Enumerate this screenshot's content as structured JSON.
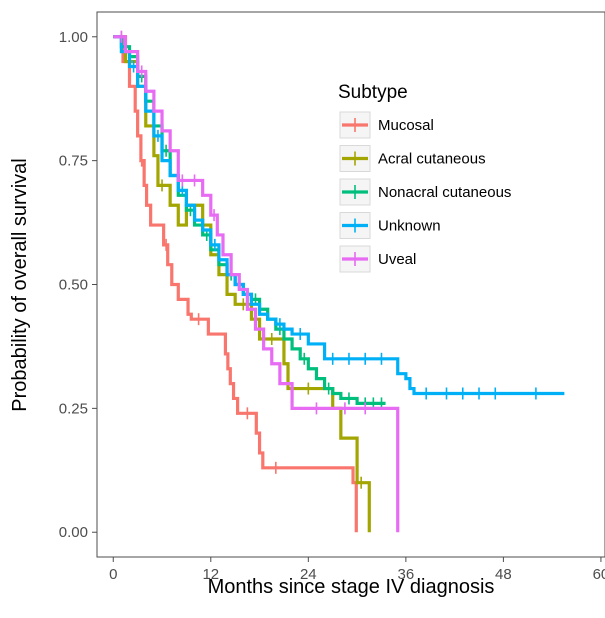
{
  "chart_data": {
    "type": "line",
    "xlabel": "Months since stage IV diagnosis",
    "ylabel": "Probability of overall survival",
    "xlim": [
      -2,
      60.5
    ],
    "ylim": [
      -0.05,
      1.05
    ],
    "xticks": [
      0,
      12,
      24,
      36,
      48,
      60
    ],
    "xtick_labels": [
      "0",
      "12",
      "24",
      "36",
      "48",
      "60"
    ],
    "yticks": [
      0,
      0.25,
      0.5,
      0.75,
      1.0
    ],
    "ytick_labels": [
      "0.00",
      "0.25",
      "0.50",
      "0.75",
      "1.00"
    ],
    "grid": false,
    "legend": {
      "title": "Subtype",
      "placement": "inside-top-right"
    },
    "series": [
      {
        "name": "Mucosal",
        "color": "#f8766d",
        "steps": [
          [
            0,
            1.0
          ],
          [
            1.2,
            0.95
          ],
          [
            2.0,
            0.9
          ],
          [
            2.7,
            0.85
          ],
          [
            3.0,
            0.8
          ],
          [
            3.4,
            0.75
          ],
          [
            3.8,
            0.7
          ],
          [
            4.1,
            0.66
          ],
          [
            4.6,
            0.62
          ],
          [
            6.2,
            0.58
          ],
          [
            6.7,
            0.54
          ],
          [
            7.2,
            0.5
          ],
          [
            8.0,
            0.47
          ],
          [
            9.2,
            0.44
          ],
          [
            9.6,
            0.43
          ],
          [
            11.7,
            0.4
          ],
          [
            13.8,
            0.36
          ],
          [
            14.1,
            0.33
          ],
          [
            14.4,
            0.3
          ],
          [
            14.8,
            0.27
          ],
          [
            15.3,
            0.24
          ],
          [
            17.6,
            0.2
          ],
          [
            18.0,
            0.16
          ],
          [
            18.4,
            0.13
          ],
          [
            29.5,
            0.1
          ],
          [
            29.9,
            0.0
          ]
        ],
        "censored": [
          [
            1.0,
            0.97
          ],
          [
            3.5,
            0.76
          ],
          [
            6.5,
            0.58
          ],
          [
            10.5,
            0.44
          ],
          [
            16.5,
            0.24
          ],
          [
            20.0,
            0.13
          ]
        ]
      },
      {
        "name": "Acral cutaneous",
        "color": "#a3a500",
        "steps": [
          [
            0,
            1.0
          ],
          [
            1.5,
            0.95
          ],
          [
            3.0,
            0.9
          ],
          [
            4.0,
            0.82
          ],
          [
            5.0,
            0.76
          ],
          [
            5.5,
            0.7
          ],
          [
            7.0,
            0.66
          ],
          [
            8.0,
            0.62
          ],
          [
            9.0,
            0.66
          ],
          [
            11.0,
            0.62
          ],
          [
            12.0,
            0.56
          ],
          [
            13.0,
            0.52
          ],
          [
            14.0,
            0.48
          ],
          [
            15.0,
            0.46
          ],
          [
            17.0,
            0.43
          ],
          [
            18.0,
            0.39
          ],
          [
            21.0,
            0.34
          ],
          [
            21.5,
            0.29
          ],
          [
            27.0,
            0.25
          ],
          [
            28.0,
            0.19
          ],
          [
            30.0,
            0.1
          ],
          [
            31.5,
            0.0
          ]
        ],
        "censored": [
          [
            6.0,
            0.7
          ],
          [
            16.0,
            0.46
          ],
          [
            19.5,
            0.39
          ],
          [
            24.0,
            0.29
          ],
          [
            30.5,
            0.1
          ]
        ]
      },
      {
        "name": "Nonacral cutaneous",
        "color": "#00bf7d",
        "steps": [
          [
            0,
            1.0
          ],
          [
            1,
            0.98
          ],
          [
            2,
            0.96
          ],
          [
            3,
            0.92
          ],
          [
            4,
            0.87
          ],
          [
            5,
            0.82
          ],
          [
            6,
            0.77
          ],
          [
            7,
            0.72
          ],
          [
            8,
            0.68
          ],
          [
            9,
            0.65
          ],
          [
            10,
            0.62
          ],
          [
            11,
            0.6
          ],
          [
            12,
            0.57
          ],
          [
            13,
            0.54
          ],
          [
            14,
            0.52
          ],
          [
            15,
            0.5
          ],
          [
            16,
            0.48
          ],
          [
            17,
            0.47
          ],
          [
            18,
            0.45
          ],
          [
            19,
            0.43
          ],
          [
            20,
            0.41
          ],
          [
            21,
            0.39
          ],
          [
            22,
            0.37
          ],
          [
            23,
            0.35
          ],
          [
            24,
            0.33
          ],
          [
            25,
            0.31
          ],
          [
            26,
            0.29
          ],
          [
            27,
            0.28
          ],
          [
            28,
            0.27
          ],
          [
            30,
            0.26
          ],
          [
            33.5,
            0.26
          ]
        ],
        "censored": [
          [
            1.5,
            0.98
          ],
          [
            3.5,
            0.92
          ],
          [
            6.5,
            0.77
          ],
          [
            9.5,
            0.65
          ],
          [
            11.5,
            0.6
          ],
          [
            14.5,
            0.52
          ],
          [
            17.5,
            0.47
          ],
          [
            20.5,
            0.41
          ],
          [
            23.5,
            0.35
          ],
          [
            26.5,
            0.29
          ],
          [
            29.0,
            0.27
          ],
          [
            31.0,
            0.26
          ],
          [
            32.0,
            0.26
          ],
          [
            33.0,
            0.26
          ]
        ]
      },
      {
        "name": "Unknown",
        "color": "#00b0f6",
        "steps": [
          [
            0,
            1.0
          ],
          [
            1,
            0.97
          ],
          [
            2,
            0.94
          ],
          [
            3,
            0.9
          ],
          [
            4,
            0.85
          ],
          [
            5,
            0.8
          ],
          [
            6,
            0.75
          ],
          [
            7,
            0.72
          ],
          [
            8,
            0.69
          ],
          [
            9,
            0.66
          ],
          [
            10,
            0.63
          ],
          [
            11,
            0.61
          ],
          [
            12,
            0.58
          ],
          [
            13,
            0.55
          ],
          [
            14,
            0.52
          ],
          [
            15,
            0.5
          ],
          [
            16,
            0.48
          ],
          [
            17,
            0.46
          ],
          [
            18,
            0.44
          ],
          [
            19,
            0.43
          ],
          [
            20,
            0.42
          ],
          [
            21,
            0.41
          ],
          [
            22,
            0.4
          ],
          [
            24,
            0.38
          ],
          [
            26,
            0.35
          ],
          [
            35,
            0.32
          ],
          [
            36,
            0.31
          ],
          [
            36.5,
            0.29
          ],
          [
            37,
            0.28
          ],
          [
            55.5,
            0.28
          ]
        ],
        "censored": [
          [
            2.5,
            0.94
          ],
          [
            5.5,
            0.8
          ],
          [
            8.5,
            0.69
          ],
          [
            12.5,
            0.58
          ],
          [
            16.5,
            0.48
          ],
          [
            20.5,
            0.42
          ],
          [
            23.0,
            0.4
          ],
          [
            27.0,
            0.35
          ],
          [
            29.0,
            0.35
          ],
          [
            31.0,
            0.35
          ],
          [
            33.0,
            0.35
          ],
          [
            38.5,
            0.28
          ],
          [
            41.0,
            0.28
          ],
          [
            43.0,
            0.28
          ],
          [
            45.0,
            0.28
          ],
          [
            47.0,
            0.28
          ],
          [
            52.0,
            0.28
          ]
        ]
      },
      {
        "name": "Uveal",
        "color": "#e76bf3",
        "steps": [
          [
            0,
            1.0
          ],
          [
            1.5,
            0.97
          ],
          [
            3,
            0.93
          ],
          [
            4,
            0.89
          ],
          [
            5,
            0.85
          ],
          [
            6,
            0.81
          ],
          [
            7,
            0.77
          ],
          [
            8,
            0.71
          ],
          [
            11,
            0.68
          ],
          [
            12,
            0.64
          ],
          [
            12.8,
            0.6
          ],
          [
            13.5,
            0.56
          ],
          [
            14.5,
            0.52
          ],
          [
            15.5,
            0.49
          ],
          [
            16.5,
            0.45
          ],
          [
            17.5,
            0.41
          ],
          [
            18.5,
            0.37
          ],
          [
            19.5,
            0.34
          ],
          [
            20.5,
            0.3
          ],
          [
            22.0,
            0.25
          ],
          [
            35.0,
            0.0
          ]
        ],
        "censored": [
          [
            1.0,
            0.98
          ],
          [
            3.5,
            0.93
          ],
          [
            8.5,
            0.71
          ],
          [
            10.0,
            0.71
          ],
          [
            12.4,
            0.64
          ],
          [
            25.0,
            0.25
          ],
          [
            28.5,
            0.25
          ],
          [
            31.0,
            0.25
          ]
        ]
      }
    ]
  }
}
